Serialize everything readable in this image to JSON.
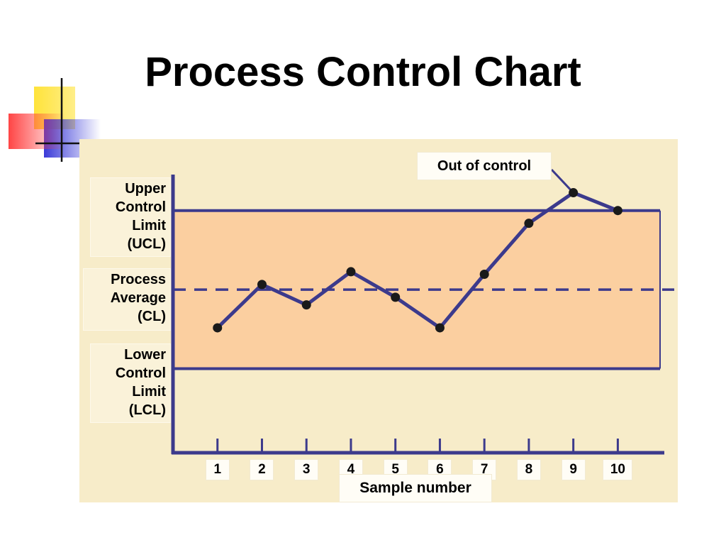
{
  "slide": {
    "title": "Process Control Chart"
  },
  "colors": {
    "line": "#3c3a8c",
    "band": "#fbcfa0",
    "panel": "#f7ecc9",
    "point": "#1a1a1a"
  },
  "chart_data": {
    "type": "line",
    "title": "Process Control Chart",
    "xlabel": "Sample number",
    "ylabel": "",
    "x": [
      1,
      2,
      3,
      4,
      5,
      6,
      7,
      8,
      9,
      10
    ],
    "tick_labels": [
      "1",
      "2",
      "3",
      "4",
      "5",
      "6",
      "7",
      "8",
      "9",
      "10"
    ],
    "series": [
      {
        "values": [
          45,
          62,
          54,
          67,
          57,
          45,
          66,
          86,
          98,
          91
        ]
      }
    ],
    "limits": {
      "ucl": {
        "value": 91,
        "label_lines": [
          "Upper",
          "Control",
          "Limit",
          "(UCL)"
        ]
      },
      "cl": {
        "value": 60,
        "label_lines": [
          "Process",
          "Average",
          "(CL)"
        ]
      },
      "lcl": {
        "value": 29,
        "label_lines": [
          "Lower",
          "Control",
          "Limit",
          "(LCL)"
        ]
      }
    },
    "annotation": {
      "text": "Out of control",
      "target_sample": 9
    },
    "ylim": [
      -4,
      104
    ],
    "xlim": [
      0,
      10.95
    ],
    "grid": false,
    "legend": "none"
  }
}
